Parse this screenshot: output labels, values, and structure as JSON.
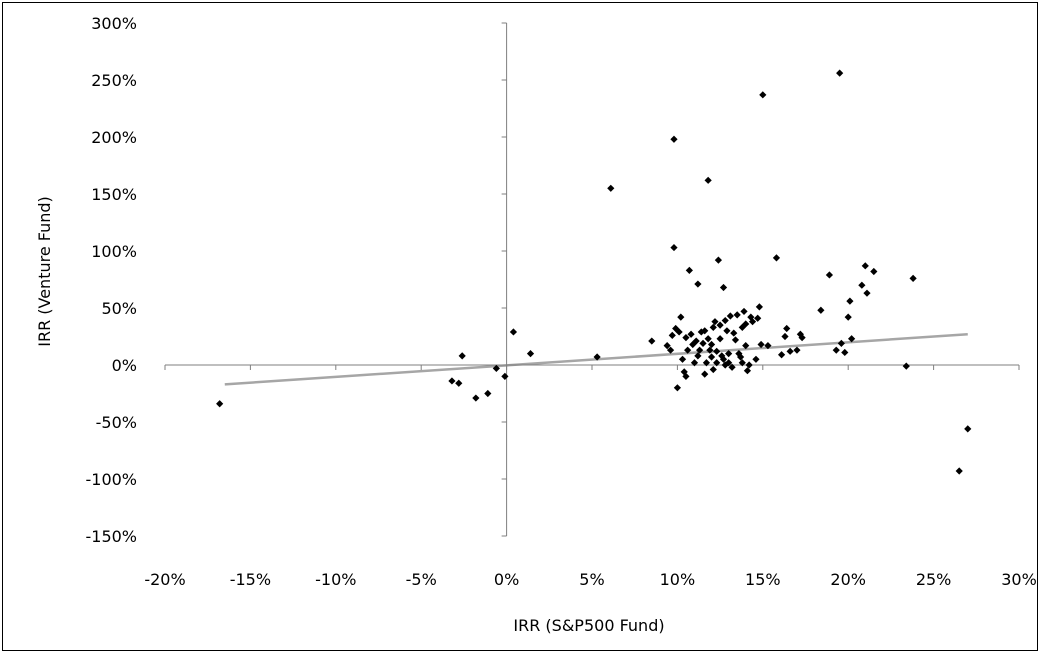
{
  "chart_data": {
    "type": "scatter",
    "title": "",
    "xlabel": "IRR (S&P500 Fund)",
    "ylabel": "IRR (Venture Fund)",
    "xlim": [
      -20,
      30
    ],
    "ylim": [
      -150,
      300
    ],
    "x_ticks": [
      -20,
      -15,
      -10,
      -5,
      0,
      5,
      10,
      15,
      20,
      25,
      30
    ],
    "y_ticks": [
      -150,
      -100,
      -50,
      0,
      50,
      100,
      150,
      200,
      250,
      300
    ],
    "x_tick_labels": [
      "-20%",
      "-15%",
      "-10%",
      "-5%",
      "0%",
      "5%",
      "10%",
      "15%",
      "20%",
      "25%",
      "30%"
    ],
    "y_tick_labels": [
      "-150%",
      "-100%",
      "-50%",
      "0%",
      "50%",
      "100%",
      "150%",
      "200%",
      "250%",
      "300%"
    ],
    "grid": false,
    "marker_color": "#000000",
    "trendline_color": "#a6a6a6",
    "trendline": {
      "x": [
        -16.5,
        27
      ],
      "y": [
        -17,
        27
      ]
    },
    "points": [
      [
        -16.8,
        -34
      ],
      [
        -3.2,
        -14
      ],
      [
        -2.6,
        8
      ],
      [
        -2.8,
        -16
      ],
      [
        -1.8,
        -29
      ],
      [
        -1.1,
        -25
      ],
      [
        -0.6,
        -3
      ],
      [
        -0.1,
        -10
      ],
      [
        0.4,
        29
      ],
      [
        1.4,
        10
      ],
      [
        5.3,
        7
      ],
      [
        6.1,
        155
      ],
      [
        8.5,
        21
      ],
      [
        9.4,
        17
      ],
      [
        9.6,
        13
      ],
      [
        9.7,
        26
      ],
      [
        9.8,
        103
      ],
      [
        9.8,
        198
      ],
      [
        9.9,
        32
      ],
      [
        10.0,
        -20
      ],
      [
        10.1,
        29
      ],
      [
        10.2,
        42
      ],
      [
        10.3,
        5
      ],
      [
        10.4,
        -6
      ],
      [
        10.5,
        -10
      ],
      [
        10.5,
        24
      ],
      [
        10.6,
        13
      ],
      [
        10.7,
        83
      ],
      [
        10.8,
        27
      ],
      [
        10.9,
        18
      ],
      [
        11.0,
        2
      ],
      [
        11.1,
        21
      ],
      [
        11.2,
        8
      ],
      [
        11.2,
        71
      ],
      [
        11.3,
        13
      ],
      [
        11.4,
        29
      ],
      [
        11.5,
        19
      ],
      [
        11.6,
        -8
      ],
      [
        11.6,
        30
      ],
      [
        11.7,
        2
      ],
      [
        11.8,
        23
      ],
      [
        11.8,
        162
      ],
      [
        11.9,
        13
      ],
      [
        12.0,
        7
      ],
      [
        12.0,
        18
      ],
      [
        12.1,
        -4
      ],
      [
        12.1,
        33
      ],
      [
        12.2,
        38
      ],
      [
        12.3,
        12
      ],
      [
        12.3,
        2
      ],
      [
        12.4,
        92
      ],
      [
        12.5,
        35
      ],
      [
        12.5,
        23
      ],
      [
        12.6,
        8
      ],
      [
        12.7,
        68
      ],
      [
        12.7,
        5
      ],
      [
        12.8,
        39
      ],
      [
        12.8,
        0
      ],
      [
        12.9,
        30
      ],
      [
        13.0,
        10
      ],
      [
        13.0,
        2
      ],
      [
        13.1,
        43
      ],
      [
        13.2,
        -2
      ],
      [
        13.3,
        28
      ],
      [
        13.4,
        22
      ],
      [
        13.5,
        44
      ],
      [
        13.6,
        10
      ],
      [
        13.7,
        7
      ],
      [
        13.8,
        2
      ],
      [
        13.8,
        33
      ],
      [
        13.9,
        47
      ],
      [
        14.0,
        36
      ],
      [
        14.0,
        17
      ],
      [
        14.1,
        -5
      ],
      [
        14.2,
        0
      ],
      [
        14.3,
        42
      ],
      [
        14.4,
        38
      ],
      [
        14.6,
        5
      ],
      [
        14.7,
        41
      ],
      [
        14.8,
        51
      ],
      [
        14.9,
        18
      ],
      [
        15.0,
        237
      ],
      [
        15.3,
        17
      ],
      [
        15.8,
        94
      ],
      [
        16.1,
        9
      ],
      [
        16.3,
        25
      ],
      [
        16.4,
        32
      ],
      [
        16.6,
        12
      ],
      [
        17.0,
        13
      ],
      [
        17.2,
        27
      ],
      [
        17.3,
        24
      ],
      [
        18.4,
        48
      ],
      [
        18.9,
        79
      ],
      [
        19.3,
        13
      ],
      [
        19.5,
        256
      ],
      [
        19.6,
        19
      ],
      [
        19.8,
        11
      ],
      [
        20.0,
        42
      ],
      [
        20.1,
        56
      ],
      [
        20.2,
        23
      ],
      [
        20.8,
        70
      ],
      [
        21.0,
        87
      ],
      [
        21.1,
        63
      ],
      [
        21.5,
        82
      ],
      [
        23.4,
        -1
      ],
      [
        23.8,
        76
      ],
      [
        26.5,
        -93
      ],
      [
        27.0,
        -56
      ]
    ]
  }
}
